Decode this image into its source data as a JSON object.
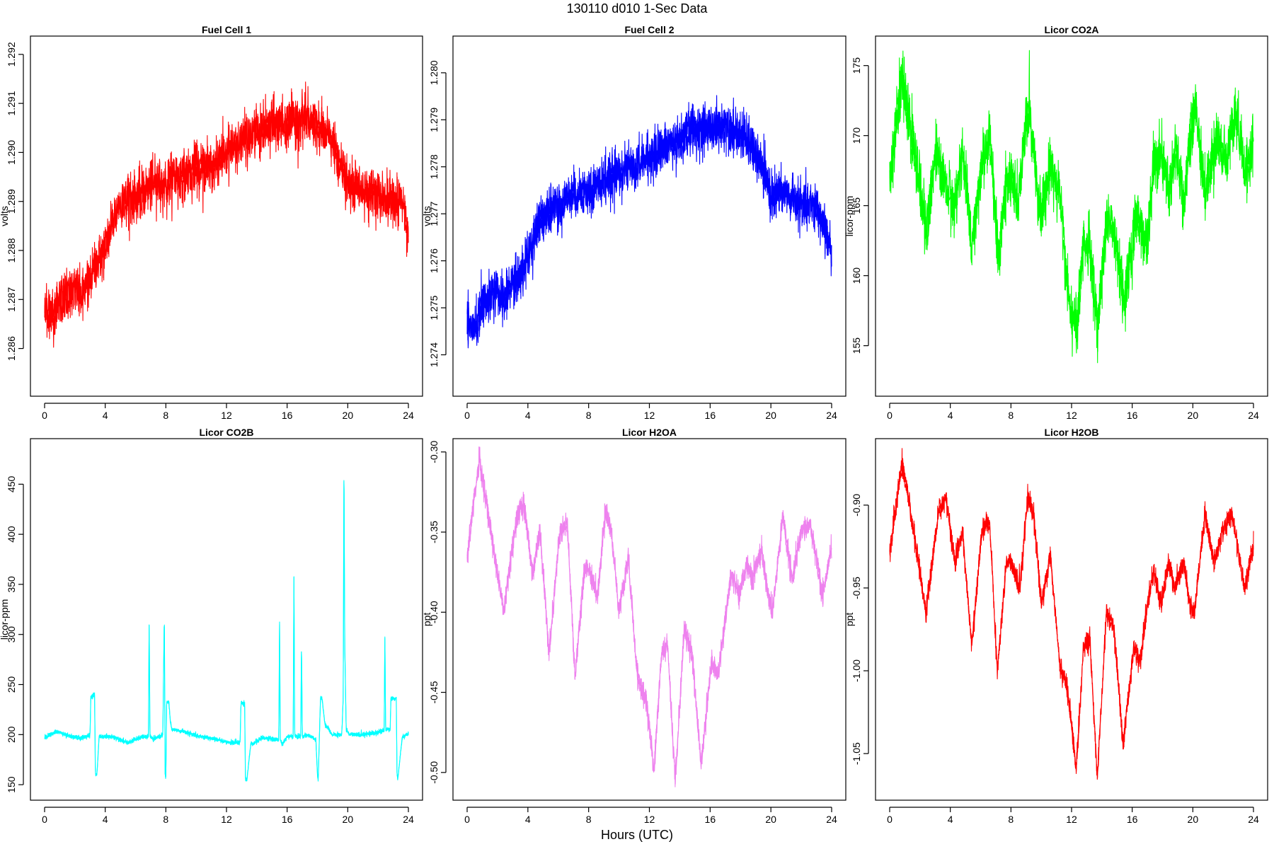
{
  "figure": {
    "title": "130110   d010   1-Sec Data",
    "xlabel": "Hours (UTC)"
  },
  "chart_data": [
    {
      "type": "line",
      "title": "Fuel Cell 1",
      "ylabel": "volts",
      "xlabel": "",
      "color": "#ff0000",
      "xlim": [
        0,
        24
      ],
      "ylim": [
        1.2852,
        1.2922
      ],
      "xticks": [
        0,
        4,
        8,
        12,
        16,
        20,
        24
      ],
      "yticks": [
        1.286,
        1.287,
        1.288,
        1.289,
        1.29,
        1.291,
        1.292
      ],
      "ytick_labels": [
        "1.286",
        "1.287",
        "1.288",
        "1.289",
        "1.290",
        "1.291",
        "1.292"
      ],
      "noise": 0.00055,
      "series": [
        {
          "x": [
            0,
            0.5,
            1,
            1.5,
            2,
            2.5,
            3,
            3.5,
            4,
            4.5,
            5,
            6,
            7,
            8,
            9,
            10,
            11,
            12,
            13,
            14,
            15,
            16,
            17,
            18,
            19,
            20,
            21,
            22,
            23,
            23.5,
            24
          ],
          "values": [
            1.2868,
            1.2866,
            1.287,
            1.2871,
            1.2872,
            1.2871,
            1.2874,
            1.2878,
            1.288,
            1.2886,
            1.289,
            1.2891,
            1.2893,
            1.2894,
            1.2895,
            1.2897,
            1.2897,
            1.29,
            1.2902,
            1.2904,
            1.2906,
            1.2906,
            1.2907,
            1.2905,
            1.2902,
            1.2893,
            1.2893,
            1.2891,
            1.2891,
            1.289,
            1.2883
          ]
        }
      ]
    },
    {
      "type": "line",
      "title": "Fuel Cell 2",
      "ylabel": "volts",
      "xlabel": "",
      "color": "#0000ff",
      "xlim": [
        0,
        24
      ],
      "ylim": [
        1.2733,
        1.2806
      ],
      "xticks": [
        0,
        4,
        8,
        12,
        16,
        20,
        24
      ],
      "yticks": [
        1.274,
        1.275,
        1.276,
        1.277,
        1.278,
        1.279,
        1.28
      ],
      "ytick_labels": [
        "1.274",
        "1.275",
        "1.276",
        "1.277",
        "1.278",
        "1.279",
        "1.280"
      ],
      "noise": 0.00055,
      "series": [
        {
          "x": [
            0,
            0.5,
            1,
            1.5,
            2,
            2.5,
            3,
            3.5,
            4,
            4.5,
            5,
            6,
            7,
            8,
            9,
            10,
            11,
            12,
            13,
            14,
            15,
            16,
            17,
            18,
            19,
            20,
            21,
            22,
            23,
            23.5,
            24
          ],
          "values": [
            1.2747,
            1.2745,
            1.275,
            1.2752,
            1.2753,
            1.2752,
            1.2755,
            1.2757,
            1.2761,
            1.2766,
            1.277,
            1.2772,
            1.2774,
            1.2775,
            1.2777,
            1.2779,
            1.278,
            1.2782,
            1.2784,
            1.2786,
            1.2788,
            1.2788,
            1.2789,
            1.2787,
            1.2783,
            1.2774,
            1.2774,
            1.2772,
            1.2771,
            1.2768,
            1.2762
          ]
        }
      ]
    },
    {
      "type": "line",
      "title": "Licor CO2A",
      "ylabel": "licor-ppm",
      "xlabel": "",
      "color": "#00ff00",
      "xlim": [
        0,
        24
      ],
      "ylim": [
        152.0,
        176.5
      ],
      "xticks": [
        0,
        4,
        8,
        12,
        16,
        20,
        24
      ],
      "yticks": [
        155,
        160,
        165,
        170,
        175
      ],
      "ytick_labels": [
        "155",
        "160",
        "165",
        "170",
        "175"
      ],
      "noise": 2.2,
      "series": [
        {
          "x": [
            0,
            0.8,
            1.3,
            2.5,
            3.0,
            3.5,
            4.3,
            4.8,
            5.4,
            6.1,
            6.6,
            7.2,
            7.7,
            8.0,
            8.5,
            8.9,
            9.2,
            10.0,
            10.6,
            11.2,
            11.8,
            12.3,
            12.8,
            13.2,
            13.7,
            14.3,
            14.8,
            15.5,
            16.2,
            16.5,
            17.0,
            17.4,
            17.9,
            18.4,
            18.9,
            19.4,
            19.8,
            20.2,
            20.8,
            21.6,
            22.2,
            22.8,
            23.5,
            24.0
          ],
          "values": [
            167,
            174,
            171,
            163,
            169,
            167,
            165,
            169,
            162,
            168,
            170,
            161,
            167,
            167,
            165,
            170,
            172,
            164,
            168,
            166,
            158,
            156,
            162,
            162,
            156,
            164,
            163,
            158,
            164,
            164,
            162,
            168,
            169,
            166,
            169,
            165,
            170,
            172,
            166,
            170,
            168,
            172,
            167,
            170
          ]
        }
      ]
    },
    {
      "type": "line",
      "title": "Licor CO2B",
      "ylabel": "licor-ppm",
      "xlabel": "",
      "color": "#00ffff",
      "xlim": [
        0,
        24
      ],
      "ylim": [
        143,
        487
      ],
      "xticks": [
        0,
        4,
        8,
        12,
        16,
        20,
        24
      ],
      "yticks": [
        150,
        200,
        250,
        300,
        350,
        400,
        450
      ],
      "ytick_labels": [
        "150",
        "200",
        "250",
        "300",
        "350",
        "400",
        "450"
      ],
      "noise": 2.5,
      "series": [
        {
          "x": [
            0,
            0.8,
            1.6,
            2.4,
            3.0,
            3.05,
            3.1,
            3.3,
            3.35,
            3.45,
            3.6,
            4.5,
            5.5,
            6.5,
            6.85,
            6.9,
            6.95,
            7.2,
            7.8,
            7.9,
            7.95,
            8.0,
            8.05,
            8.2,
            8.3,
            8.4,
            9.2,
            10.2,
            11.2,
            12.2,
            12.9,
            12.95,
            13.0,
            13.2,
            13.25,
            13.35,
            13.6,
            14.4,
            15.2,
            15.45,
            15.5,
            15.55,
            15.65,
            16.0,
            16.4,
            16.45,
            16.5,
            16.9,
            16.95,
            17.0,
            17.3,
            17.9,
            18.0,
            18.05,
            18.2,
            18.3,
            18.5,
            19.0,
            19.6,
            19.7,
            19.75,
            19.8,
            19.9,
            20.1,
            21.0,
            21.9,
            22.4,
            22.45,
            22.5,
            22.8,
            22.85,
            23.2,
            23.25,
            23.3,
            23.6,
            24.0
          ],
          "values": [
            197,
            203,
            199,
            196,
            200,
            238,
            238,
            240,
            160,
            160,
            198,
            198,
            192,
            198,
            198,
            318,
            198,
            195,
            200,
            323,
            160,
            157,
            232,
            232,
            212,
            205,
            203,
            198,
            196,
            192,
            192,
            230,
            232,
            230,
            155,
            155,
            190,
            197,
            195,
            195,
            320,
            195,
            190,
            198,
            198,
            364,
            198,
            198,
            295,
            198,
            200,
            195,
            160,
            155,
            236,
            236,
            210,
            200,
            200,
            235,
            482,
            290,
            205,
            200,
            200,
            202,
            204,
            300,
            205,
            206,
            236,
            236,
            160,
            155,
            198,
            200
          ]
        }
      ]
    },
    {
      "type": "line",
      "title": "Licor H2OA",
      "ylabel": "ppt",
      "xlabel": "",
      "color": "#ee82ee",
      "xlim": [
        0,
        24
      ],
      "ylim": [
        -0.512,
        -0.297
      ],
      "xticks": [
        0,
        4,
        8,
        12,
        16,
        20,
        24
      ],
      "yticks": [
        -0.5,
        -0.45,
        -0.4,
        -0.35,
        -0.3
      ],
      "ytick_labels": [
        "-0.50",
        "-0.45",
        "-0.40",
        "-0.35",
        "-0.30"
      ],
      "noise": 0.008,
      "series": [
        {
          "x": [
            0,
            0.8,
            1.4,
            2.4,
            3.2,
            3.7,
            4.3,
            4.8,
            5.4,
            6.1,
            6.6,
            7.1,
            7.7,
            8.0,
            8.6,
            9.1,
            9.5,
            10.0,
            10.6,
            11.2,
            11.8,
            12.3,
            12.8,
            13.2,
            13.7,
            14.3,
            14.8,
            15.4,
            16.1,
            16.5,
            17.0,
            17.4,
            17.9,
            18.4,
            18.8,
            19.4,
            19.8,
            20.1,
            20.8,
            21.4,
            22.0,
            22.6,
            23.4,
            24.0
          ],
          "values": [
            -0.365,
            -0.305,
            -0.34,
            -0.4,
            -0.345,
            -0.33,
            -0.375,
            -0.35,
            -0.425,
            -0.35,
            -0.345,
            -0.44,
            -0.375,
            -0.372,
            -0.39,
            -0.335,
            -0.35,
            -0.4,
            -0.365,
            -0.44,
            -0.455,
            -0.5,
            -0.425,
            -0.42,
            -0.505,
            -0.41,
            -0.425,
            -0.495,
            -0.43,
            -0.44,
            -0.405,
            -0.375,
            -0.39,
            -0.37,
            -0.38,
            -0.36,
            -0.39,
            -0.4,
            -0.34,
            -0.38,
            -0.35,
            -0.345,
            -0.39,
            -0.36
          ]
        }
      ]
    },
    {
      "type": "line",
      "title": "Licor H2OB",
      "ylabel": "ppt",
      "xlabel": "",
      "color": "#ff0000",
      "xlim": [
        0,
        24
      ],
      "ylim": [
        -1.073,
        -0.865
      ],
      "xticks": [
        0,
        4,
        8,
        12,
        16,
        20,
        24
      ],
      "yticks": [
        -1.05,
        -1.0,
        -0.95,
        -0.9
      ],
      "ytick_labels": [
        "-1.05",
        "-1.00",
        "-0.95",
        "-0.90"
      ],
      "noise": 0.007,
      "series": [
        {
          "x": [
            0,
            0.8,
            1.4,
            2.4,
            3.2,
            3.7,
            4.3,
            4.8,
            5.4,
            6.1,
            6.6,
            7.1,
            7.7,
            8.0,
            8.6,
            9.1,
            9.5,
            10.0,
            10.6,
            11.2,
            11.8,
            12.3,
            12.8,
            13.2,
            13.7,
            14.3,
            14.8,
            15.4,
            16.1,
            16.5,
            17.0,
            17.4,
            17.9,
            18.4,
            18.8,
            19.4,
            19.8,
            20.1,
            20.8,
            21.4,
            22.0,
            22.6,
            23.4,
            24.0
          ],
          "values": [
            -0.93,
            -0.875,
            -0.905,
            -0.965,
            -0.905,
            -0.895,
            -0.935,
            -0.915,
            -0.985,
            -0.915,
            -0.91,
            -1.0,
            -0.935,
            -0.935,
            -0.95,
            -0.895,
            -0.905,
            -0.96,
            -0.93,
            -0.995,
            -1.015,
            -1.06,
            -0.985,
            -0.98,
            -1.065,
            -0.965,
            -0.975,
            -1.045,
            -0.985,
            -0.995,
            -0.96,
            -0.94,
            -0.96,
            -0.935,
            -0.95,
            -0.935,
            -0.96,
            -0.965,
            -0.905,
            -0.935,
            -0.915,
            -0.905,
            -0.95,
            -0.925
          ]
        }
      ]
    }
  ]
}
